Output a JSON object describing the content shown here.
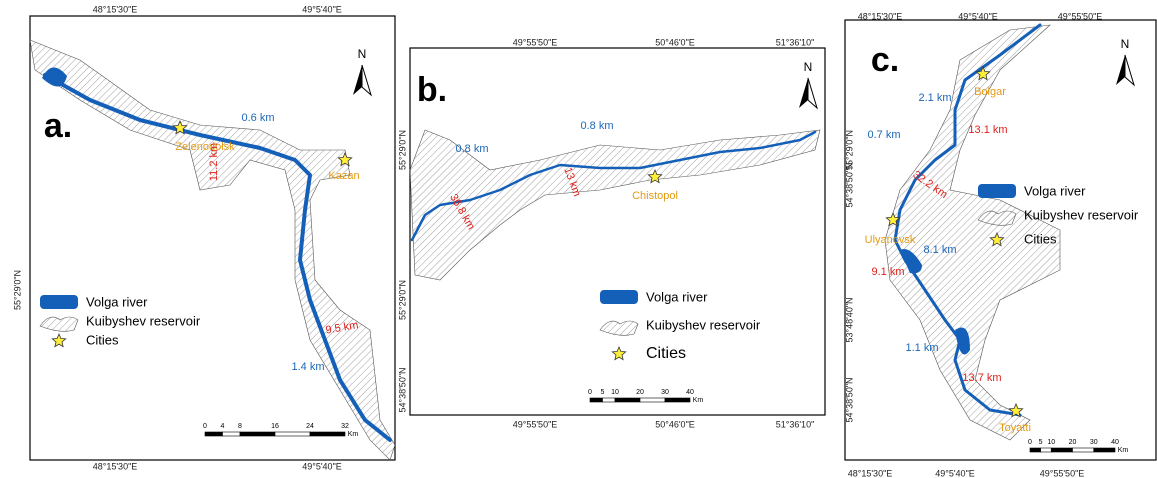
{
  "panels": [
    {
      "label": "a.",
      "north": "N",
      "coords": [
        "48°15'30\"E",
        "49°5'40\"E",
        "48°15'30\"E",
        "49°5'40\"E",
        "55°29'0\"N"
      ],
      "cities": [
        "Zelenodolsk",
        "Kazan"
      ],
      "widths": [
        "0.6 km",
        "11.2 km",
        "9.5 km",
        "1.4 km"
      ],
      "legend": [
        "Volga river",
        "Kuibyshev reservoir",
        "Cities"
      ],
      "scale": [
        "0",
        "4",
        "8",
        "16",
        "24",
        "32",
        "Km"
      ]
    },
    {
      "label": "b.",
      "north": "N",
      "coords": [
        "49°55'50\"E",
        "50°46'0\"E",
        "51°36'10\"",
        "49°55'50\"E",
        "50°46'0\"E",
        "51°36'10\"",
        "55°29'0\"N",
        "55°29'0\"N",
        "54°38'50\"N"
      ],
      "cities": [
        "Chistopol"
      ],
      "widths": [
        "0.8 km",
        "36.8 km",
        "0.8 km",
        "13 km"
      ],
      "legend": [
        "Volga river",
        "Kuibyshev reservoir",
        "Cities"
      ],
      "scale": [
        "0",
        "5",
        "10",
        "20",
        "30",
        "40",
        "Km"
      ]
    },
    {
      "label": "c.",
      "north": "N",
      "coords": [
        "48°15'30\"E",
        "49°5'40\"E",
        "49°55'50\"E",
        "48°15'30\"E",
        "49°5'40\"E",
        "49°55'50\"E",
        "55°29'0\"N",
        "54°38'50\"N",
        "53°48'40\"N",
        "54°38'50\"N"
      ],
      "cities": [
        "Bolgar",
        "Ulyanovsk",
        "Toyatti"
      ],
      "widths": [
        "2.1 km",
        "13.1 km",
        "0.7 km",
        "32.2 km",
        "8.1 km",
        "9.1 km",
        "1.1 km",
        "13.7 km"
      ],
      "legend": [
        "Volga river",
        "Kuibyshev reservoir",
        "Cities"
      ],
      "scale": [
        "0",
        "5",
        "10",
        "20",
        "30",
        "40",
        "Km"
      ]
    }
  ]
}
